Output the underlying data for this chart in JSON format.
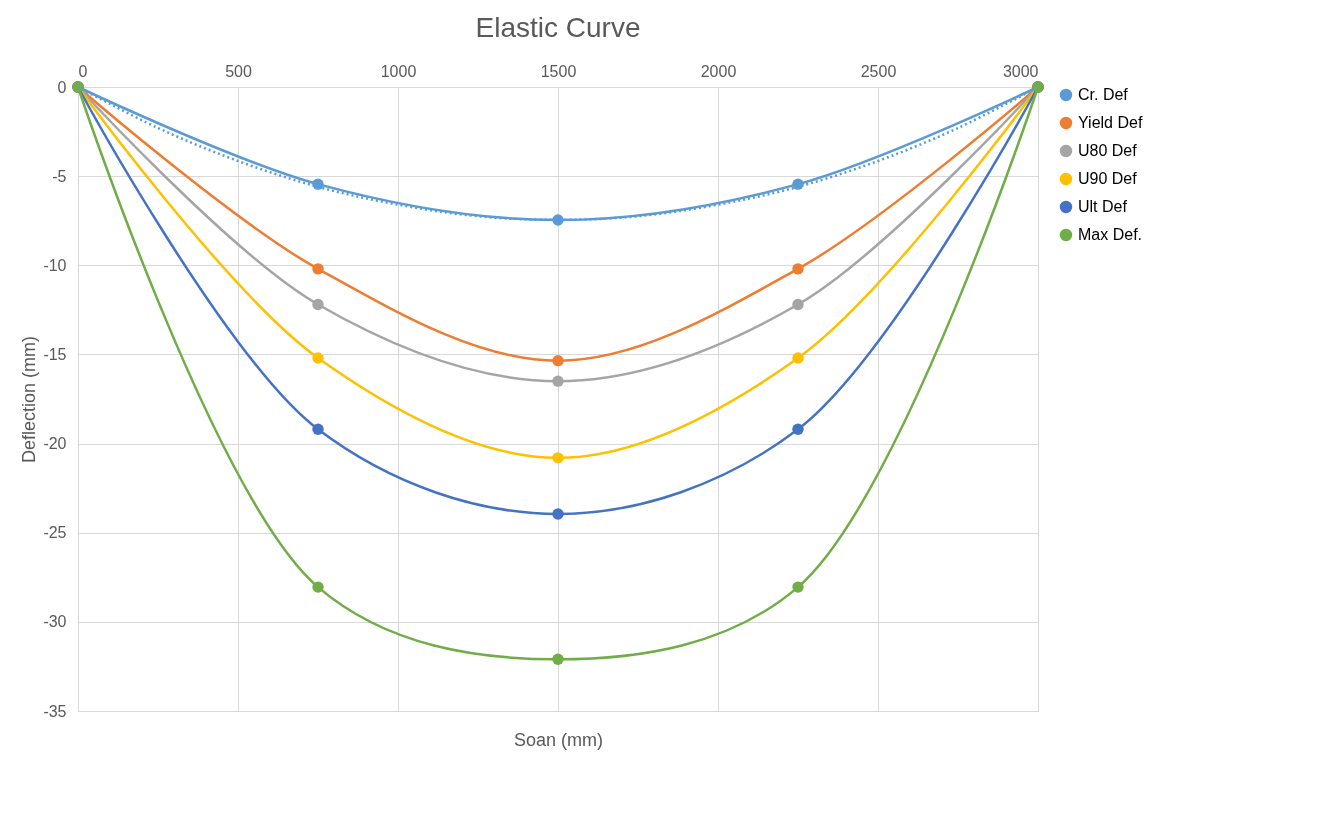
{
  "chart_data": {
    "type": "line",
    "title": "Elastic Curve",
    "xlabel": "Soan (mm)",
    "ylabel": "Deflection (mm)",
    "x": [
      0,
      750,
      1500,
      2250,
      3000
    ],
    "series": [
      {
        "name": "Cr. Def",
        "color": "#5b9bd5",
        "values": [
          0,
          -5.45,
          -7.46,
          -5.45,
          0
        ]
      },
      {
        "name": "Yield Def",
        "color": "#ed7d31",
        "values": [
          0,
          -10.2,
          -15.35,
          -10.2,
          0
        ]
      },
      {
        "name": "U80 Def",
        "color": "#a5a5a5",
        "values": [
          0,
          -12.2,
          -16.5,
          -12.2,
          0
        ]
      },
      {
        "name": "U90 Def",
        "color": "#ffc000",
        "values": [
          0,
          -15.2,
          -20.8,
          -15.2,
          0
        ]
      },
      {
        "name": "Ult Def",
        "color": "#4472c4",
        "values": [
          0,
          -19.2,
          -23.95,
          -19.2,
          0
        ]
      },
      {
        "name": "Max Def.",
        "color": "#70ad47",
        "values": [
          0,
          -28.05,
          -32.1,
          -28.05,
          0
        ]
      },
      {
        "type": "line",
        "color": "#5b9bd5",
        "marker": "none",
        "line_style": "dotted",
        "x": [
          0,
          250,
          500,
          750,
          1000,
          1250,
          1500,
          1750,
          2000,
          2250,
          2500,
          2750,
          3000
        ],
        "values": [
          0,
          -2.3,
          -4.15,
          -5.6,
          -6.6,
          -7.25,
          -7.45,
          -7.25,
          -6.6,
          -5.6,
          -4.15,
          -2.3,
          0
        ]
      }
    ],
    "xlim": [
      0,
      3000
    ],
    "xticks": [
      0,
      500,
      1000,
      1500,
      2000,
      2500,
      3000
    ],
    "ylim": [
      -35,
      0
    ],
    "yticks": [
      0,
      -5,
      -10,
      -15,
      -20,
      -25,
      -30,
      -35
    ],
    "grid": true,
    "legend": "right",
    "marker": "circle",
    "line_style": "solid"
  }
}
